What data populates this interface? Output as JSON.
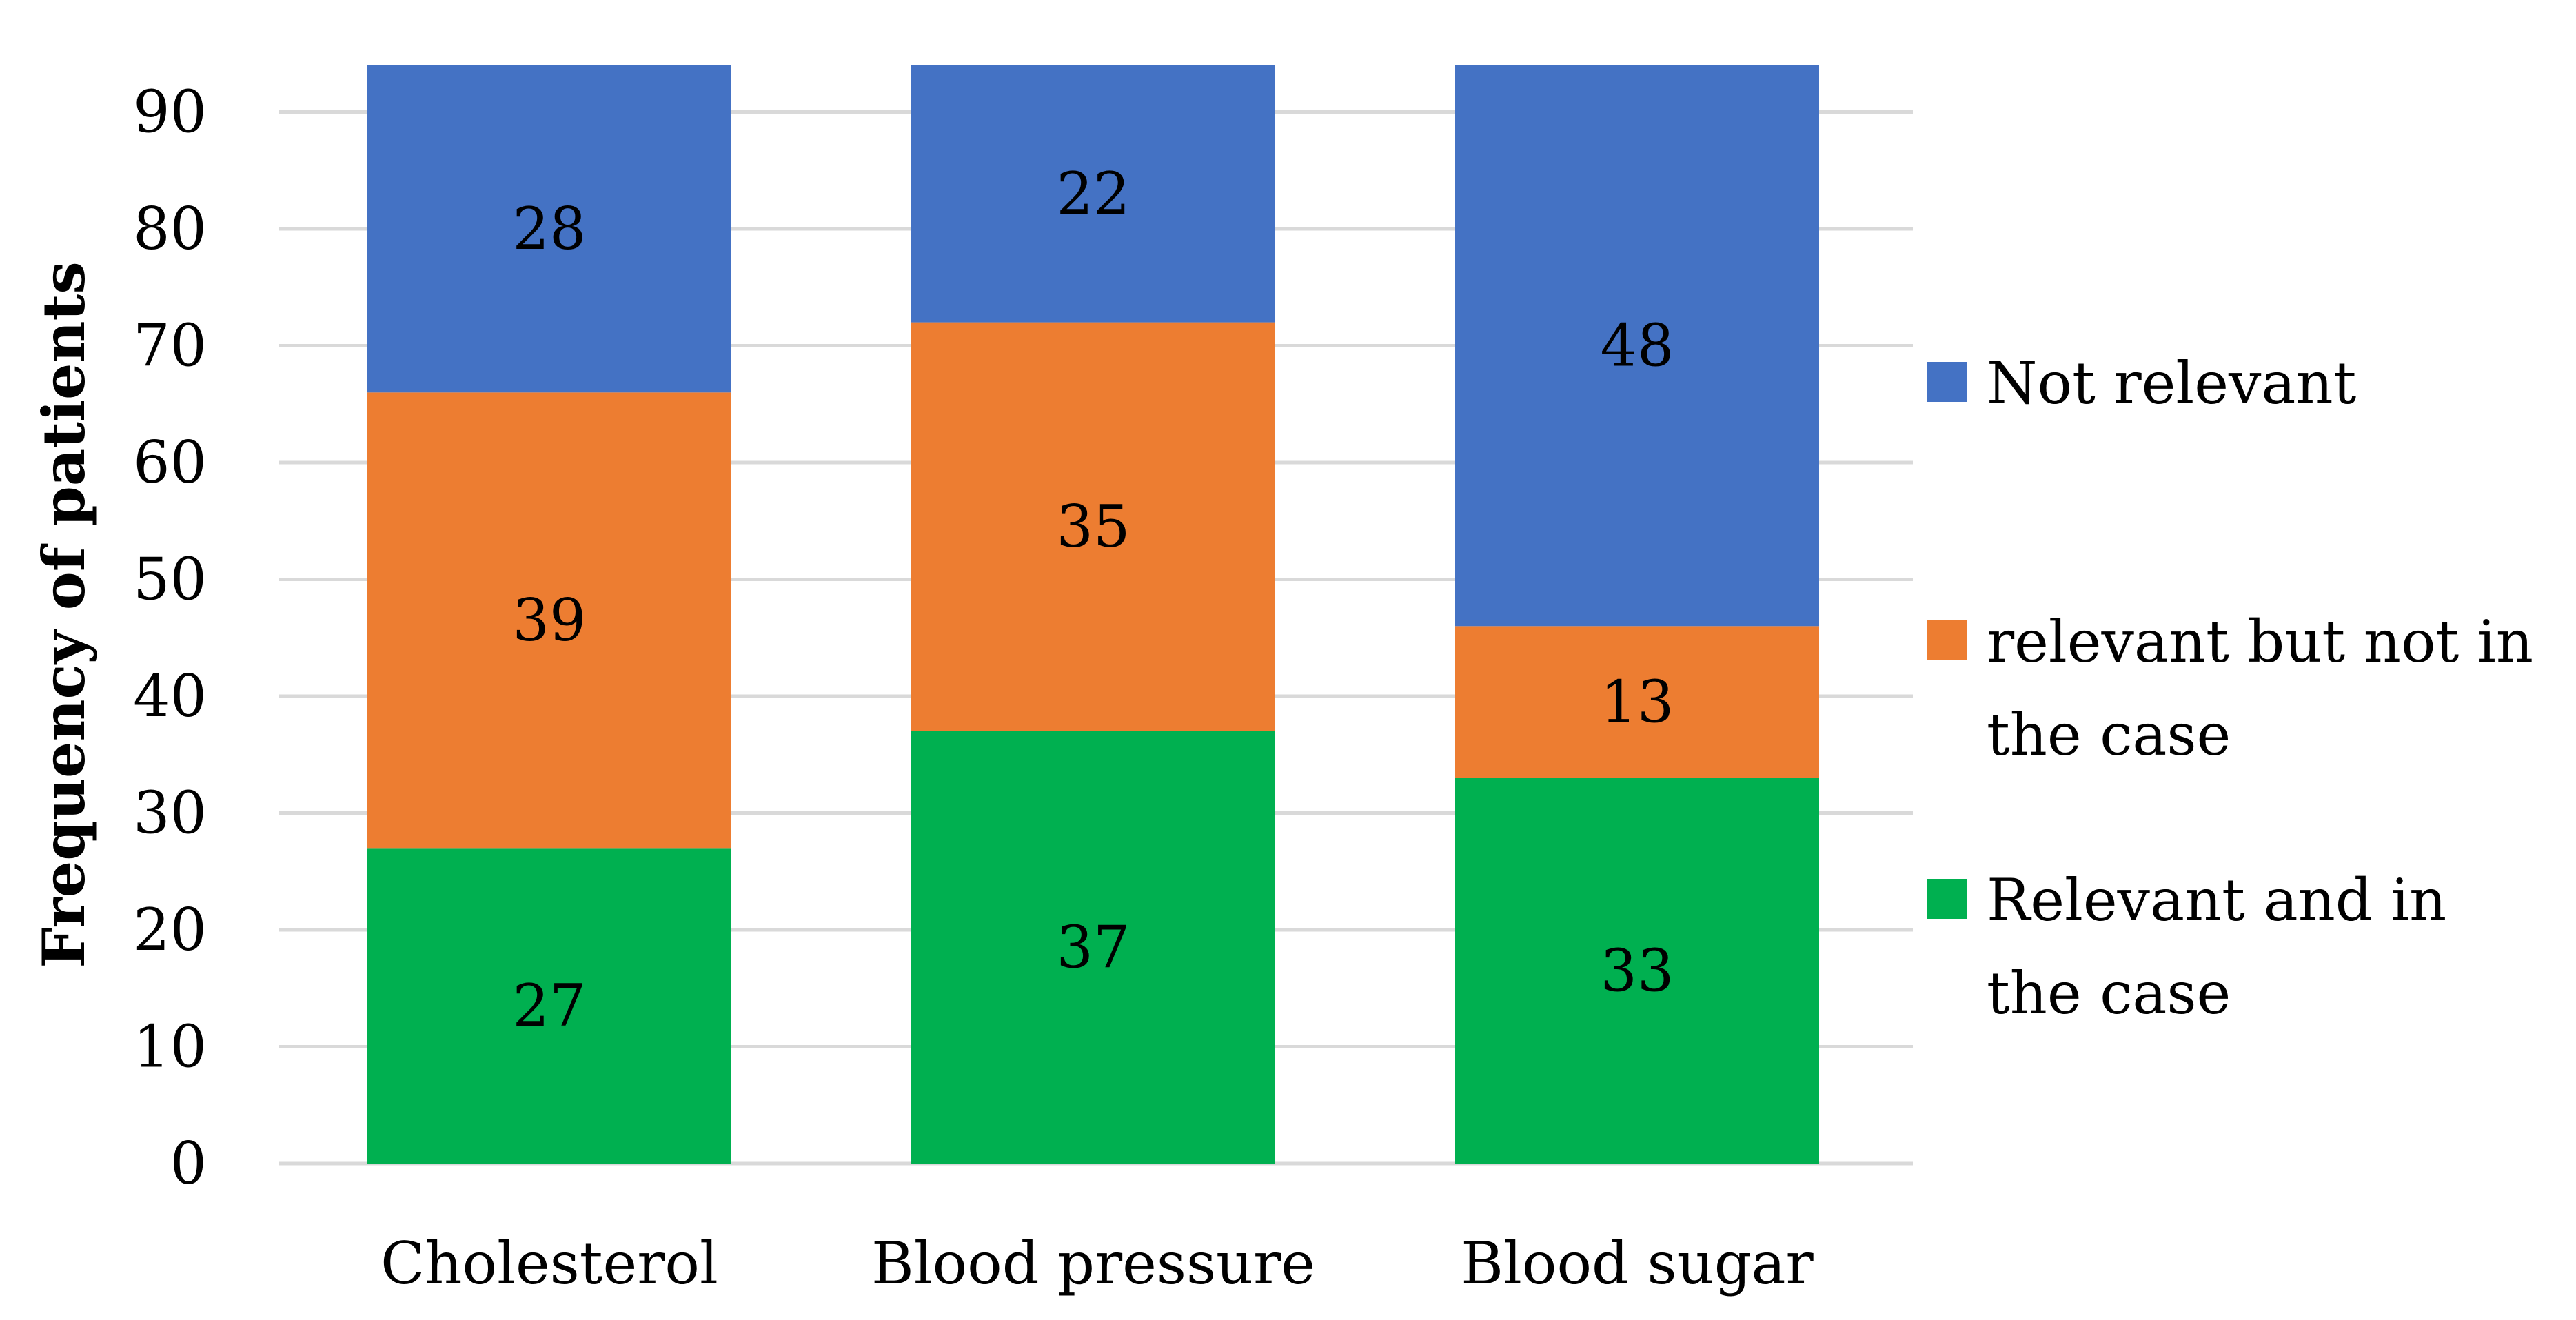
{
  "chart_data": {
    "type": "bar",
    "stacked": true,
    "title": "",
    "xlabel": "",
    "ylabel": "Frequency of patients",
    "ylim": [
      0,
      94
    ],
    "yticks": [
      0,
      10,
      20,
      30,
      40,
      50,
      60,
      70,
      80,
      90
    ],
    "grid": true,
    "legend_position": "right",
    "categories": [
      "Cholesterol",
      "Blood pressure",
      "Blood sugar"
    ],
    "series": [
      {
        "name": "Relevant and in the case",
        "legend_lines": [
          "Relevant and in",
          "the case"
        ],
        "color": "#00b050",
        "values": [
          27,
          37,
          33
        ]
      },
      {
        "name": "relevant but not in the case",
        "legend_lines": [
          "relevant but not in",
          "the case"
        ],
        "color": "#ed7d31",
        "values": [
          39,
          35,
          13
        ]
      },
      {
        "name": "Not relevant",
        "legend_lines": [
          "Not relevant"
        ],
        "color": "#4472c4",
        "values": [
          28,
          22,
          48
        ]
      }
    ]
  }
}
